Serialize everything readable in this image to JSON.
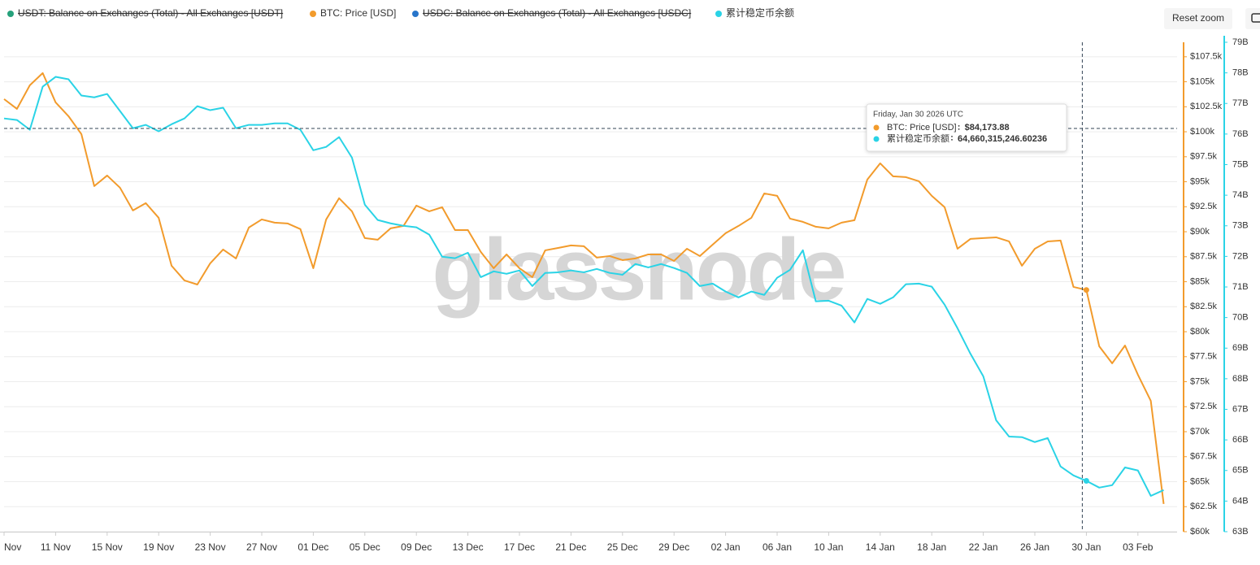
{
  "chart_data": {
    "type": "line",
    "watermark": "glassnode",
    "reset_zoom": "Reset zoom",
    "hidden_series": [
      {
        "name": "USDT: Balance on Exchanges (Total) - All Exchanges [USDT]",
        "color": "#26a17b"
      },
      {
        "name": "USDC: Balance on Exchanges (Total) - All Exchanges [USDC]",
        "color": "#2775ca"
      }
    ],
    "categories": [
      "Nov",
      null,
      null,
      null,
      "11 Nov",
      null,
      null,
      null,
      "15 Nov",
      null,
      null,
      null,
      "19 Nov",
      null,
      null,
      null,
      "23 Nov",
      null,
      null,
      null,
      "27 Nov",
      null,
      null,
      null,
      "01 Dec",
      null,
      null,
      null,
      "05 Dec",
      null,
      null,
      null,
      "09 Dec",
      null,
      null,
      null,
      "13 Dec",
      null,
      null,
      null,
      "17 Dec",
      null,
      null,
      null,
      "21 Dec",
      null,
      null,
      null,
      "25 Dec",
      null,
      null,
      null,
      "29 Dec",
      null,
      null,
      null,
      "02 Jan",
      null,
      null,
      null,
      "06 Jan",
      null,
      null,
      null,
      "10 Jan",
      null,
      null,
      null,
      "14 Jan",
      null,
      null,
      null,
      "18 Jan",
      null,
      null,
      null,
      "22 Jan",
      null,
      null,
      null,
      "26 Jan",
      null,
      null,
      null,
      "30 Jan",
      null,
      null,
      null,
      "03 Feb",
      null,
      null
    ],
    "series": [
      {
        "name": "BTC: Price [USD]",
        "color": "#f29b2c",
        "values": [
          103268,
          102290,
          104650,
          105870,
          102940,
          101560,
          99770,
          94570,
          95620,
          94400,
          92130,
          92860,
          91390,
          86600,
          85130,
          84720,
          86840,
          88220,
          87330,
          90420,
          91230,
          90910,
          90830,
          90260,
          86350,
          91230,
          93350,
          92040,
          89360,
          89200,
          90340,
          90580,
          92610,
          92040,
          92450,
          90170,
          90170,
          87980,
          86350,
          87730,
          86350,
          85460,
          88140,
          88380,
          88630,
          88550,
          87410,
          87570,
          87160,
          87330,
          87730,
          87730,
          87080,
          88300,
          87570,
          88710,
          89850,
          90580,
          91390,
          93830,
          93590,
          91310,
          90990,
          90500,
          90340,
          90910,
          91150,
          95220,
          96840,
          95540,
          95460,
          95050,
          93590,
          92450,
          88300,
          89280,
          89360,
          89440,
          89030,
          86600,
          88300,
          89030,
          89120,
          84480,
          84173.88,
          78540,
          76840,
          78620,
          75700,
          73090,
          62770
        ]
      },
      {
        "name": "累计稳定币余额",
        "color": "#2ad3e6",
        "axis": "y2",
        "values": [
          76510000000,
          76460000000,
          76140000000,
          77550000000,
          77870000000,
          77790000000,
          77260000000,
          77200000000,
          77310000000,
          76750000000,
          76190000000,
          76300000000,
          76090000000,
          76320000000,
          76510000000,
          76910000000,
          76780000000,
          76860000000,
          76190000000,
          76300000000,
          76300000000,
          76350000000,
          76350000000,
          76140000000,
          75470000000,
          75580000000,
          75900000000,
          75230000000,
          73690000000,
          73190000000,
          73080000000,
          73000000000,
          72950000000,
          72710000000,
          71990000000,
          71940000000,
          72120000000,
          71320000000,
          71510000000,
          71430000000,
          71540000000,
          71030000000,
          71460000000,
          71480000000,
          71540000000,
          71480000000,
          71590000000,
          71460000000,
          71400000000,
          71750000000,
          71640000000,
          71750000000,
          71620000000,
          71460000000,
          71030000000,
          71110000000,
          70850000000,
          70660000000,
          70850000000,
          70740000000,
          71300000000,
          71560000000,
          72200000000,
          70530000000,
          70550000000,
          70390000000,
          69840000000,
          70610000000,
          70450000000,
          70660000000,
          71090000000,
          71110000000,
          71010000000,
          70420000000,
          69650000000,
          68820000000,
          68080000000,
          66640000000,
          66110000000,
          66090000000,
          65930000000,
          66060000000,
          65130000000,
          64840000000,
          64660315246.60236,
          64440000000,
          64520000000,
          65100000000,
          65000000000,
          64170000000,
          64360000000
        ]
      }
    ],
    "ylim": [
      60000,
      108950
    ],
    "yticks": [
      {
        "value": 60000,
        "label": "$60k"
      },
      {
        "value": 62500,
        "label": "$62.5k"
      },
      {
        "value": 65000,
        "label": "$65k"
      },
      {
        "value": 67500,
        "label": "$67.5k"
      },
      {
        "value": 70000,
        "label": "$70k"
      },
      {
        "value": 72500,
        "label": "$72.5k"
      },
      {
        "value": 75000,
        "label": "$75k"
      },
      {
        "value": 77500,
        "label": "$77.5k"
      },
      {
        "value": 80000,
        "label": "$80k"
      },
      {
        "value": 82500,
        "label": "$82.5k"
      },
      {
        "value": 85000,
        "label": "$85k"
      },
      {
        "value": 87500,
        "label": "$87.5k"
      },
      {
        "value": 90000,
        "label": "$90k"
      },
      {
        "value": 92500,
        "label": "$92.5k"
      },
      {
        "value": 95000,
        "label": "$95k"
      },
      {
        "value": 97500,
        "label": "$97.5k"
      },
      {
        "value": 100000,
        "label": "$100k"
      },
      {
        "value": 102500,
        "label": "$102.5k"
      },
      {
        "value": 105000,
        "label": "$105k"
      },
      {
        "value": 107500,
        "label": "$107.5k"
      }
    ],
    "y2lim": [
      63000000000,
      79000000000
    ],
    "y2ticks": [
      {
        "value": 63000000000,
        "label": "63B"
      },
      {
        "value": 64000000000,
        "label": "64B"
      },
      {
        "value": 65000000000,
        "label": "65B"
      },
      {
        "value": 66000000000,
        "label": "66B"
      },
      {
        "value": 67000000000,
        "label": "67B"
      },
      {
        "value": 68000000000,
        "label": "68B"
      },
      {
        "value": 69000000000,
        "label": "69B"
      },
      {
        "value": 70000000000,
        "label": "70B"
      },
      {
        "value": 71000000000,
        "label": "71B"
      },
      {
        "value": 72000000000,
        "label": "72B"
      },
      {
        "value": 73000000000,
        "label": "73B"
      },
      {
        "value": 74000000000,
        "label": "74B"
      },
      {
        "value": 75000000000,
        "label": "75B"
      },
      {
        "value": 76000000000,
        "label": "76B"
      },
      {
        "value": 77000000000,
        "label": "77B"
      },
      {
        "value": 78000000000,
        "label": "78B"
      },
      {
        "value": 79000000000,
        "label": "79B"
      }
    ],
    "grid": true,
    "tooltip": {
      "title": "Friday, Jan 30 2026 UTC",
      "value_labels": [
        "$84,173.88",
        "64,660,315,246.60236"
      ]
    }
  }
}
